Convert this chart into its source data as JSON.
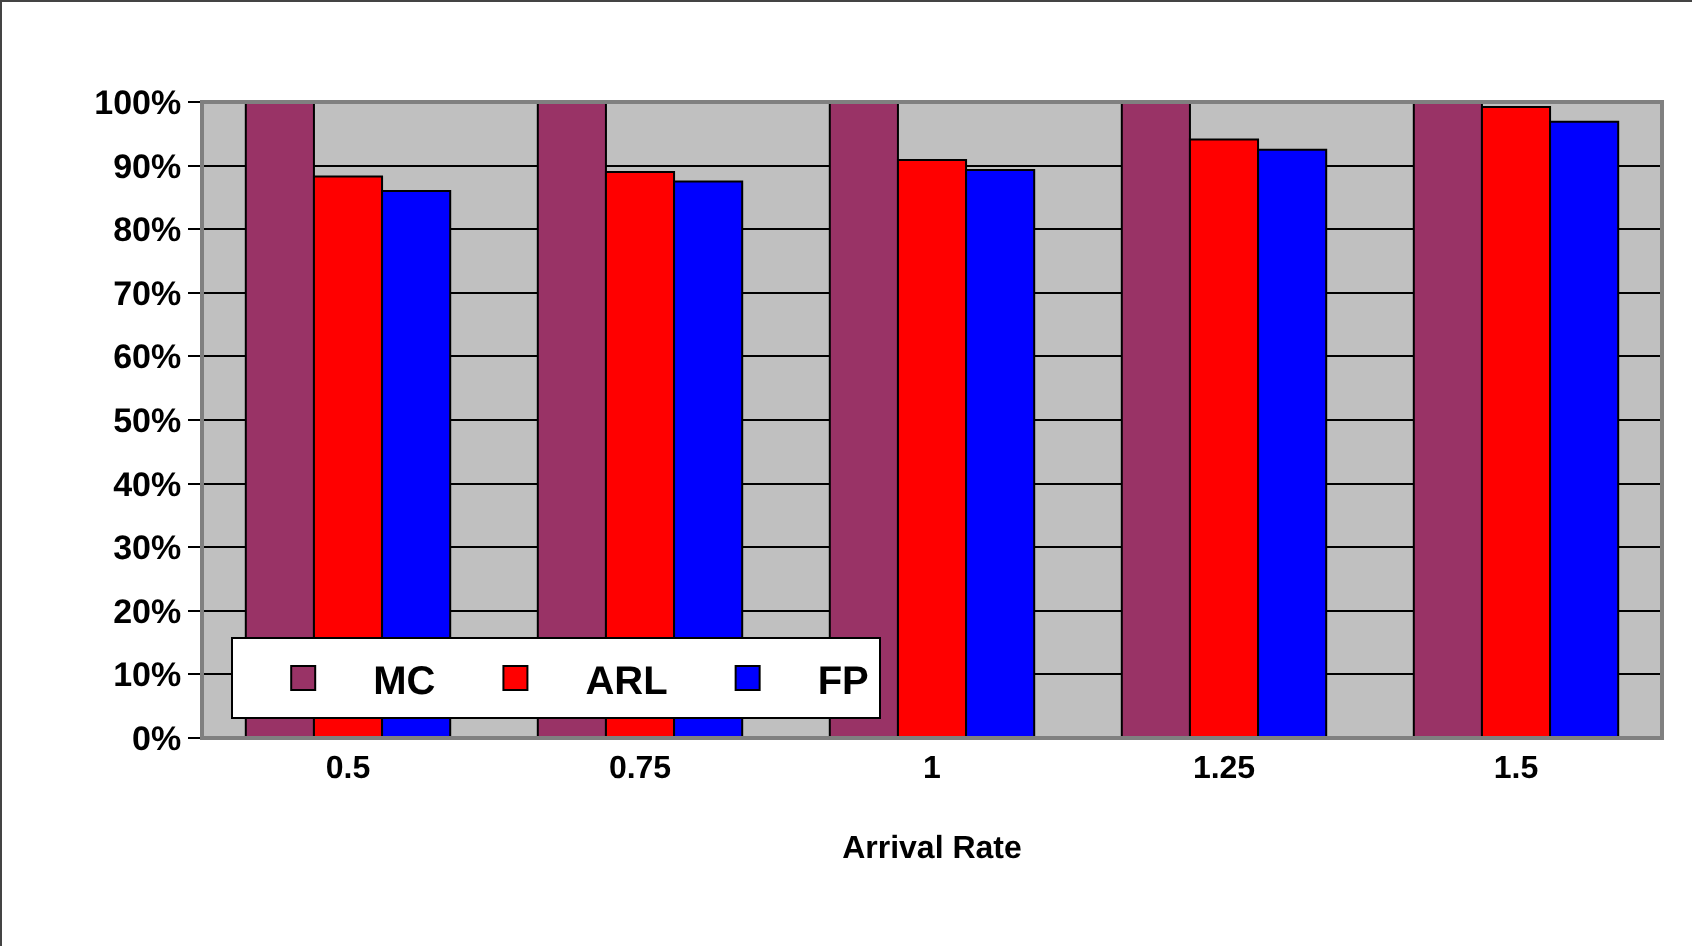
{
  "chart_data": {
    "type": "bar",
    "xlabel": "Arrival Rate",
    "categories": [
      "0.5",
      "0.75",
      "1",
      "1.25",
      "1.5"
    ],
    "series": [
      {
        "name": "MC",
        "color": "#993366",
        "values": [
          100,
          100,
          100,
          100,
          100
        ]
      },
      {
        "name": "ARL",
        "color": "#ff0000",
        "values": [
          88.3,
          89.0,
          90.9,
          94.1,
          99.2
        ]
      },
      {
        "name": "FP",
        "color": "#0000ff",
        "values": [
          86.0,
          87.5,
          89.3,
          92.5,
          96.9
        ]
      }
    ],
    "ylim": [
      0,
      100
    ],
    "yticks": [
      {
        "value": 0,
        "label": "0%"
      },
      {
        "value": 10,
        "label": "10%"
      },
      {
        "value": 20,
        "label": "20%"
      },
      {
        "value": 30,
        "label": "30%"
      },
      {
        "value": 40,
        "label": "40%"
      },
      {
        "value": 50,
        "label": "50%"
      },
      {
        "value": 60,
        "label": "60%"
      },
      {
        "value": 70,
        "label": "70%"
      },
      {
        "value": 80,
        "label": "80%"
      },
      {
        "value": 90,
        "label": "90%"
      },
      {
        "value": 100,
        "label": "100%"
      }
    ],
    "grid": "y",
    "legend": "bottom left"
  }
}
